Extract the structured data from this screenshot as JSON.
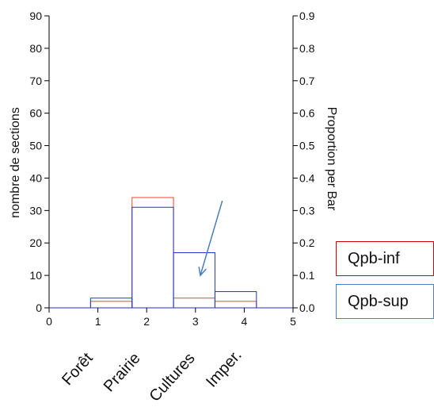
{
  "chart_data": {
    "type": "histogram",
    "ylabel_left": "nombre de sections",
    "ylabel_right": "Proportion per Bar",
    "xlim": [
      0,
      5
    ],
    "ylim_left": [
      0,
      90
    ],
    "ylim_right": [
      0.0,
      0.9
    ],
    "x_ticks": [
      "0",
      "1",
      "2",
      "3",
      "4",
      "5"
    ],
    "y_ticks_left": [
      "0",
      "10",
      "20",
      "30",
      "40",
      "50",
      "60",
      "70",
      "80",
      "90"
    ],
    "y_ticks_right": [
      "0.0",
      "0.1",
      "0.2",
      "0.3",
      "0.4",
      "0.5",
      "0.6",
      "0.7",
      "0.8",
      "0.9"
    ],
    "category_labels": [
      "Forêt",
      "Prairie",
      "Cultures",
      "Imper."
    ],
    "bin_edges": [
      0.85,
      1.7,
      2.55,
      3.4,
      4.25
    ],
    "series": [
      {
        "name": "Qpb-inf",
        "color": "#e8452c",
        "values": [
          2,
          34,
          3,
          2
        ]
      },
      {
        "name": "Qpb-sup",
        "color": "#2233cc",
        "values": [
          3,
          31,
          17,
          5
        ]
      }
    ],
    "annotation_arrow": {
      "from": [
        3.55,
        33
      ],
      "to": [
        3.1,
        10
      ],
      "color": "#4a7ebb"
    },
    "grid": false
  },
  "legend": [
    {
      "label": "Qpb-inf",
      "border_color": "#cc0000"
    },
    {
      "label": "Qpb-sup",
      "border_color": "#4a7ebb"
    }
  ]
}
